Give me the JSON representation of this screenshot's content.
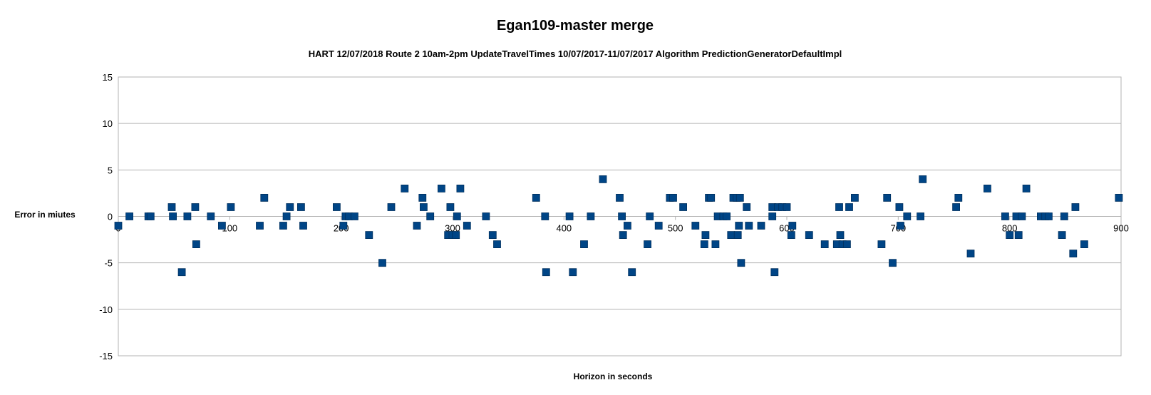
{
  "chart_data": {
    "type": "scatter",
    "title": "Egan109-master merge",
    "subtitle": "HART 12/07/2018 Route 2 10am-2pm UpdateTravelTimes 10/07/2017-11/07/2017 Algorithm PredictionGeneratorDefaultImpl",
    "xlabel": "Horizon in seconds",
    "ylabel": "Error in miutes",
    "xlim": [
      0,
      900
    ],
    "ylim": [
      -15,
      15
    ],
    "xticks": [
      "0",
      "100",
      "200",
      "300",
      "400",
      "500",
      "600",
      "700",
      "800",
      "900"
    ],
    "yticks": [
      "15",
      "10",
      "5",
      "0",
      "-5",
      "-10",
      "-15"
    ],
    "grid": "major-y",
    "legend": "none",
    "marker_color": "#004586",
    "points": [
      [
        0,
        -1
      ],
      [
        10,
        0
      ],
      [
        27,
        0
      ],
      [
        29,
        0
      ],
      [
        48,
        1
      ],
      [
        49,
        0
      ],
      [
        57,
        -6
      ],
      [
        62,
        0
      ],
      [
        69,
        1
      ],
      [
        70,
        -3
      ],
      [
        83,
        0
      ],
      [
        93,
        -1
      ],
      [
        101,
        1
      ],
      [
        127,
        -1
      ],
      [
        131,
        2
      ],
      [
        148,
        -1
      ],
      [
        151,
        0
      ],
      [
        154,
        1
      ],
      [
        164,
        1
      ],
      [
        166,
        -1
      ],
      [
        196,
        1
      ],
      [
        202,
        -1
      ],
      [
        204,
        0
      ],
      [
        207,
        0
      ],
      [
        212,
        0
      ],
      [
        225,
        -2
      ],
      [
        237,
        -5
      ],
      [
        245,
        1
      ],
      [
        257,
        3
      ],
      [
        268,
        -1
      ],
      [
        273,
        2
      ],
      [
        274,
        1
      ],
      [
        280,
        0
      ],
      [
        290,
        3
      ],
      [
        296,
        -2
      ],
      [
        298,
        1
      ],
      [
        300,
        -2
      ],
      [
        303,
        -2
      ],
      [
        304,
        0
      ],
      [
        307,
        3
      ],
      [
        313,
        -1
      ],
      [
        330,
        0
      ],
      [
        336,
        -2
      ],
      [
        340,
        -3
      ],
      [
        375,
        2
      ],
      [
        383,
        0
      ],
      [
        384,
        -6
      ],
      [
        405,
        0
      ],
      [
        408,
        -6
      ],
      [
        418,
        -3
      ],
      [
        424,
        0
      ],
      [
        435,
        4
      ],
      [
        450,
        2
      ],
      [
        452,
        0
      ],
      [
        453,
        -2
      ],
      [
        457,
        -1
      ],
      [
        461,
        -6
      ],
      [
        475,
        -3
      ],
      [
        477,
        0
      ],
      [
        485,
        -1
      ],
      [
        495,
        2
      ],
      [
        498,
        2
      ],
      [
        507,
        1
      ],
      [
        518,
        -1
      ],
      [
        526,
        -3
      ],
      [
        527,
        -2
      ],
      [
        530,
        2
      ],
      [
        532,
        2
      ],
      [
        536,
        -3
      ],
      [
        538,
        0
      ],
      [
        543,
        0
      ],
      [
        546,
        0
      ],
      [
        550,
        -2
      ],
      [
        552,
        2
      ],
      [
        555,
        2
      ],
      [
        556,
        -2
      ],
      [
        557,
        -1
      ],
      [
        558,
        2
      ],
      [
        559,
        -5
      ],
      [
        564,
        1
      ],
      [
        566,
        -1
      ],
      [
        577,
        -1
      ],
      [
        587,
        1
      ],
      [
        587,
        0
      ],
      [
        589,
        -6
      ],
      [
        592,
        1
      ],
      [
        596,
        1
      ],
      [
        600,
        1
      ],
      [
        604,
        -2
      ],
      [
        605,
        -1
      ],
      [
        620,
        -2
      ],
      [
        634,
        -3
      ],
      [
        645,
        -3
      ],
      [
        647,
        1
      ],
      [
        648,
        -2
      ],
      [
        650,
        -3
      ],
      [
        654,
        -3
      ],
      [
        656,
        1
      ],
      [
        661,
        2
      ],
      [
        685,
        -3
      ],
      [
        690,
        2
      ],
      [
        695,
        -5
      ],
      [
        701,
        1
      ],
      [
        702,
        -1
      ],
      [
        708,
        0
      ],
      [
        720,
        0
      ],
      [
        722,
        4
      ],
      [
        752,
        1
      ],
      [
        754,
        2
      ],
      [
        765,
        -4
      ],
      [
        780,
        3
      ],
      [
        796,
        0
      ],
      [
        800,
        -2
      ],
      [
        806,
        0
      ],
      [
        808,
        -2
      ],
      [
        811,
        0
      ],
      [
        815,
        3
      ],
      [
        828,
        0
      ],
      [
        832,
        0
      ],
      [
        835,
        0
      ],
      [
        847,
        -2
      ],
      [
        849,
        0
      ],
      [
        857,
        -4
      ],
      [
        859,
        1
      ],
      [
        867,
        -3
      ],
      [
        898,
        2
      ]
    ]
  }
}
